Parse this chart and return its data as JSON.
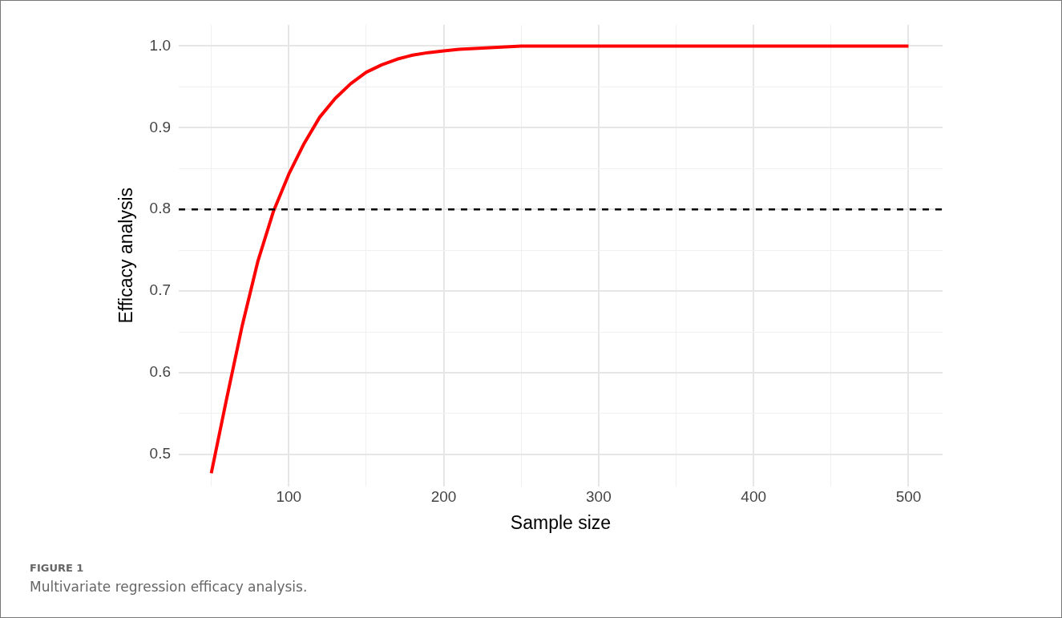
{
  "chart_data": {
    "type": "line",
    "xlabel": "Sample size",
    "ylabel": "Efficacy analysis",
    "x": [
      50,
      60,
      70,
      80,
      90,
      100,
      110,
      120,
      130,
      140,
      150,
      160,
      170,
      180,
      190,
      200,
      210,
      220,
      230,
      240,
      250,
      300,
      350,
      400,
      450,
      500
    ],
    "series": [
      {
        "color": "#ff0000",
        "values": [
          0.477,
          0.569,
          0.658,
          0.736,
          0.797,
          0.843,
          0.881,
          0.913,
          0.936,
          0.954,
          0.968,
          0.977,
          0.984,
          0.989,
          0.992,
          0.994,
          0.996,
          0.997,
          0.998,
          0.999,
          1.0,
          1.0,
          1.0,
          1.0,
          1.0,
          1.0
        ]
      }
    ],
    "xlim": [
      29,
      522
    ],
    "ylim": [
      0.461,
      1.026
    ],
    "xticks": [
      {
        "value": 50,
        "label": null
      },
      100,
      {
        "value": 150,
        "label": null
      },
      200,
      {
        "value": 250,
        "label": null
      },
      300,
      {
        "value": 350,
        "label": null
      },
      400,
      {
        "value": 450,
        "label": null
      },
      500
    ],
    "yticks": [
      {
        "value": 0.5,
        "label": "0.5"
      },
      {
        "value": 0.55,
        "label": null
      },
      {
        "value": 0.6,
        "label": "0.6"
      },
      {
        "value": 0.65,
        "label": null
      },
      {
        "value": 0.7,
        "label": "0.7"
      },
      {
        "value": 0.75,
        "label": null
      },
      {
        "value": 0.8,
        "label": "0.8"
      },
      {
        "value": 0.85,
        "label": null
      },
      {
        "value": 0.9,
        "label": "0.9"
      },
      {
        "value": 0.95,
        "label": null
      },
      {
        "value": 1.0,
        "label": "1.0"
      }
    ],
    "ref_lines": [
      {
        "axis": "y",
        "value": 0.8,
        "color": "#000000",
        "line_style": "dashed"
      }
    ],
    "grid": true,
    "legend": false,
    "marker": "none",
    "line_style": "solid",
    "annotations": [
      "FIGURE 1",
      "Multivariate regression efficacy analysis."
    ]
  }
}
